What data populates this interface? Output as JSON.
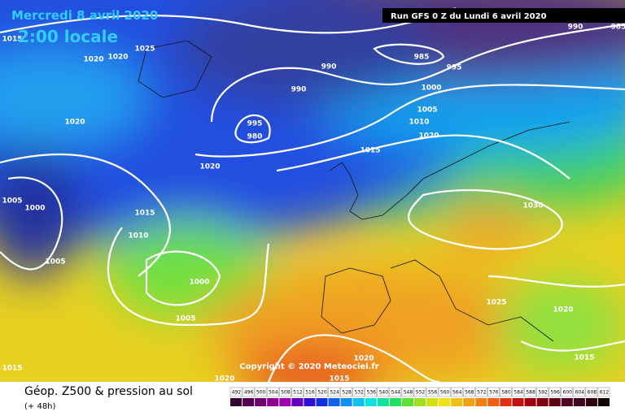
{
  "header": {
    "date": "Mercredi 8 avril 2020",
    "time": "2:00 locale",
    "run": "Run GFS 0 Z du Lundi 6 avril 2020"
  },
  "copyright": "Copyright © 2020 Meteociel.fr",
  "isobar_labels": [
    "1015",
    "1020",
    "1020",
    "1025",
    "1020",
    "990",
    "990",
    "995",
    "980",
    "985",
    "995",
    "990",
    "985",
    "1000",
    "1005",
    "1010",
    "1020",
    "1015",
    "1020",
    "1015",
    "1010",
    "1005",
    "1000",
    "1005",
    "1000",
    "1005",
    "1030",
    "1025",
    "1020",
    "1015",
    "1020",
    "1015",
    "1020",
    "1015"
  ],
  "legend": {
    "title": "Géop. Z500 & pression au sol",
    "lead": "(+ 48h)",
    "scale_labels": [
      492,
      496,
      500,
      504,
      508,
      512,
      516,
      520,
      524,
      528,
      532,
      536,
      540,
      544,
      548,
      552,
      556,
      560,
      564,
      568,
      572,
      576,
      580,
      584,
      588,
      592,
      596,
      600,
      604,
      608,
      612
    ],
    "scale_colors": [
      "#300030",
      "#500050",
      "#700070",
      "#900090",
      "#a000b0",
      "#6000c0",
      "#3010d0",
      "#1030e0",
      "#1060f0",
      "#1090f0",
      "#10c0f0",
      "#10e0e0",
      "#10e0a0",
      "#20e060",
      "#60e030",
      "#a0e020",
      "#d0e010",
      "#f0e010",
      "#f0c010",
      "#f0a010",
      "#f08010",
      "#f06010",
      "#e03010",
      "#c01010",
      "#a00010",
      "#800010",
      "#600010",
      "#500020",
      "#400020",
      "#300010",
      "#100000"
    ]
  }
}
